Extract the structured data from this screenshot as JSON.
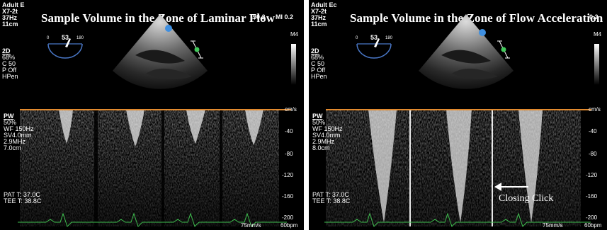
{
  "left": {
    "title": "Sample Volume in the Zone of Laminar Flow",
    "header_corner": "Adult E",
    "header_right_num": "50.2",
    "mi_label": "MI 0.2",
    "probe": "X7-2t",
    "frame_rate": "37Hz",
    "depth": "11cm",
    "angle_min": "0",
    "angle_value": "53",
    "angle_max": "180",
    "mode_2d": [
      "2D",
      "68%",
      "C 50",
      "P Off",
      "HPen"
    ],
    "map_label": "M4",
    "pw_params": [
      "PW",
      "50%",
      "WF 150Hz",
      "SV4.0mm",
      "2.9MHz",
      "7.0cm"
    ],
    "pat_t": "PAT T: 37.0C",
    "tee_t": "TEE T: 38.8C",
    "velocity_unit": "cm/s",
    "velocity_ticks": [
      "-40",
      "-80",
      "-120",
      "-160",
      "-200"
    ],
    "sweep_speed": "75mm/s",
    "heart_rate": "60bpm"
  },
  "right": {
    "title": "Sample Volume in the Zone of Flow Acceleration",
    "header_corner": "Adult Ec",
    "header_right_num": "0.2",
    "probe": "X7-2t",
    "frame_rate": "37Hz",
    "depth": "11cm",
    "angle_min": "0",
    "angle_value": "53",
    "angle_max": "180",
    "mode_2d": [
      "2D",
      "68%",
      "C 50",
      "P Off",
      "HPen"
    ],
    "map_label": "M4",
    "pw_params": [
      "PW",
      "50%",
      "WF 150Hz",
      "SV4.0mm",
      "2.9MHz",
      "8.0cm"
    ],
    "pat_t": "PAT T: 37.0C",
    "tee_t": "TEE T: 38.8C",
    "velocity_unit": "cm/s",
    "velocity_ticks": [
      "-40",
      "-80",
      "-120",
      "-160",
      "-200"
    ],
    "sweep_speed": "75mm/s",
    "heart_rate": "60bpm",
    "annotation": "Closing Click"
  },
  "colors": {
    "baseline": "#e28a2e",
    "ecg": "#3fbf4f",
    "probe_marker": "#3f8fe0",
    "sample_gate": "#41c85a"
  }
}
